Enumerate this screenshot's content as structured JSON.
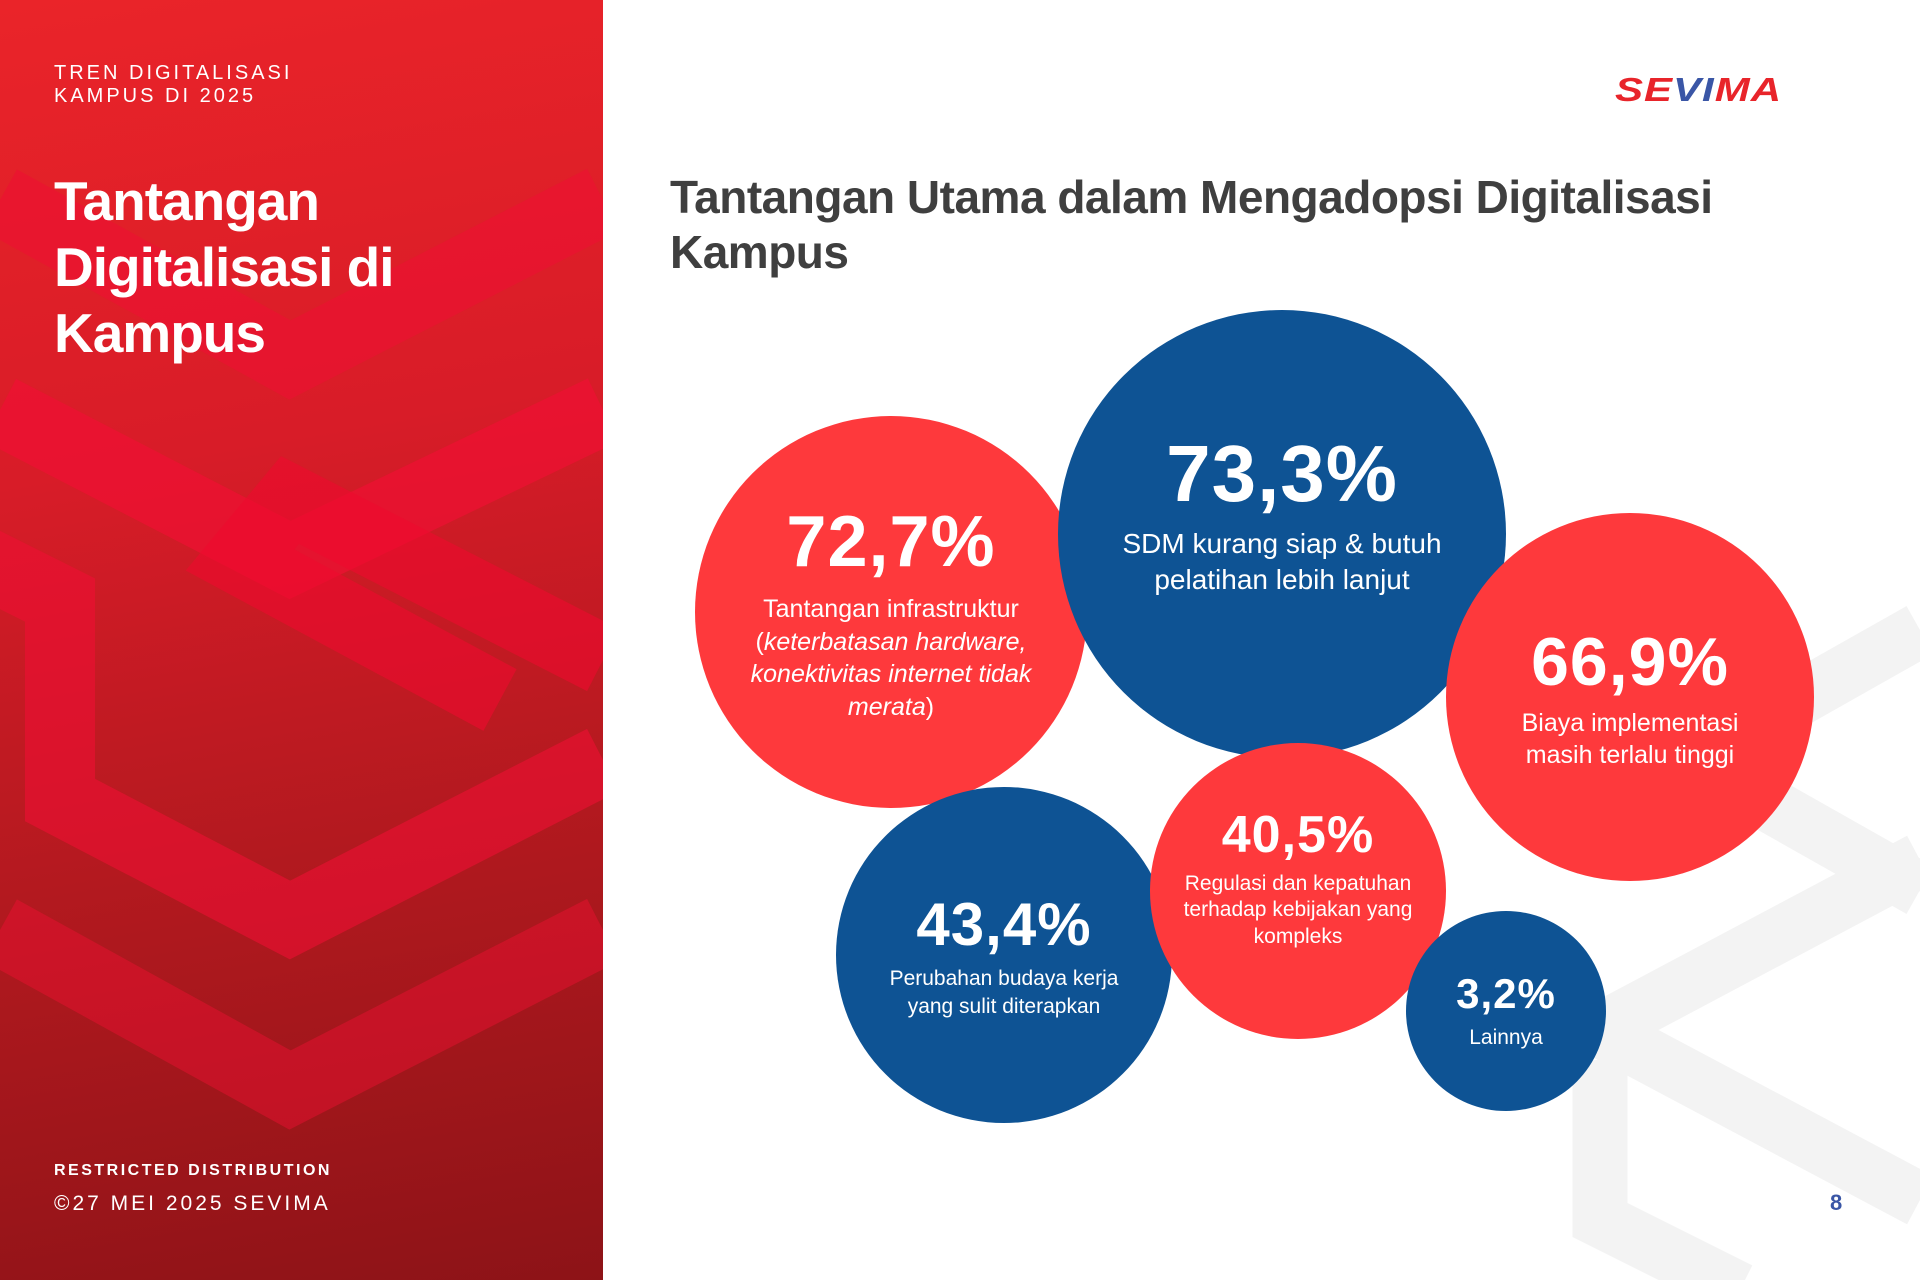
{
  "sidebar": {
    "kicker_line1": "TREN DIGITALISASI",
    "kicker_line2": "KAMPUS DI 2025",
    "title_lines": [
      "Tantangan",
      "Digitalisasi di",
      "Kampus"
    ],
    "restricted": "RESTRICTED DISTRIBUTION",
    "copyright": "©27 MEI 2025 SEVIMA"
  },
  "logo": {
    "part1": "SE",
    "part2": "VI",
    "part3": "MA"
  },
  "main": {
    "title": "Tantangan Utama dalam Mengadopsi Digitalisasi Kampus",
    "challenges": [
      {
        "value": "72,7%",
        "label_a": "Tantangan infrastruktur (",
        "label_italic": "keterbatasan hardware, konektivitas internet tidak merata",
        "label_b": ")"
      },
      {
        "value": "73,3%",
        "label": "SDM kurang siap & butuh pelatihan lebih lanjut"
      },
      {
        "value": "66,9%",
        "label": "Biaya implementasi masih terlalu tinggi"
      },
      {
        "value": "43,4%",
        "label": "Perubahan budaya kerja yang sulit diterapkan"
      },
      {
        "value": "40,5%",
        "label": "Regulasi dan kepatuhan terhadap kebijakan yang kompleks"
      },
      {
        "value": "3,2%",
        "label": "Lainnya"
      }
    ]
  },
  "page_number": "8",
  "colors": {
    "red": "#fe393c",
    "blue": "#0e5394"
  }
}
